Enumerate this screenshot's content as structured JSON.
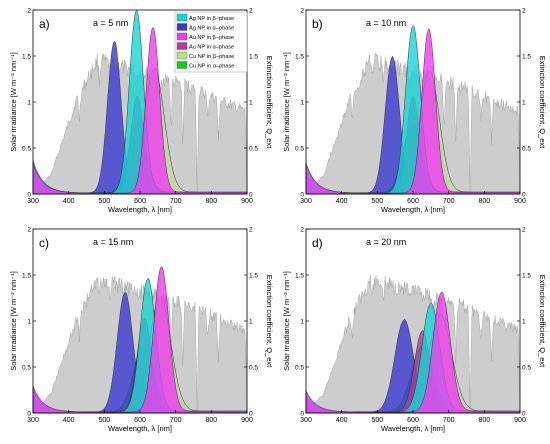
{
  "figure": {
    "legend": [
      {
        "label": "Ag NP in β–phase",
        "color": "#18d4d4"
      },
      {
        "label": "Ag NP in α–phase",
        "color": "#3a3ad0"
      },
      {
        "label": "Au NP in β–phase",
        "color": "#f03cf0"
      },
      {
        "label": "Au NP in α–phase",
        "color": "#b03aa0"
      },
      {
        "label": "Cu NP in β–phase",
        "color": "#b8e090"
      },
      {
        "label": "Cu NP in α–phase",
        "color": "#18c818"
      }
    ],
    "colors": {
      "solar": "#c8c8c8",
      "solar_edge": "#9a9a9a"
    }
  },
  "chart_data": [
    {
      "type": "area",
      "panel_label": "a)",
      "size_label": "a = 5 nm",
      "xlabel": "Wavelength, λ [nm]",
      "ylabel_left": "Solar irradiance [W m⁻² nm⁻¹]",
      "ylabel_right": "Extinction coefficient, Q_ext",
      "xlim": [
        300,
        900
      ],
      "ylim_left": [
        0,
        2.0
      ],
      "ylim_right": [
        0,
        2.0
      ],
      "xticks": [
        300,
        400,
        500,
        600,
        700,
        800,
        900
      ],
      "yticks_left": [
        0.0,
        0.5,
        1.0,
        1.5,
        2.0
      ],
      "yticks_right": [
        0.0,
        0.5,
        1.0,
        1.5,
        2.0
      ],
      "show_legend": true,
      "series": [
        {
          "name": "Ag NP in β–phase",
          "peak_x": 590,
          "peak_y": 1.98,
          "width": 20
        },
        {
          "name": "Ag NP in α–phase",
          "peak_x": 528,
          "peak_y": 1.65,
          "width": 19
        },
        {
          "name": "Au NP in β–phase",
          "peak_x": 636,
          "peak_y": 1.8,
          "width": 19
        },
        {
          "name": "Au NP in α–phase",
          "peak_x": 592,
          "peak_y": 1.05,
          "width": 18
        },
        {
          "name": "Cu NP in β–phase",
          "peak_x": 640,
          "peak_y": 1.35,
          "width": 28
        },
        {
          "name": "Cu NP in α–phase",
          "peak_x": 592,
          "peak_y": 0.75,
          "width": 25
        }
      ]
    },
    {
      "type": "area",
      "panel_label": "b)",
      "size_label": "a = 10 nm",
      "xlabel": "Wavelength, λ [nm]",
      "ylabel_left": "Solar irradiance [W m⁻² nm⁻¹]",
      "ylabel_right": "Extinction coefficient, Q_ext",
      "xlim": [
        300,
        900
      ],
      "ylim_left": [
        0,
        2.0
      ],
      "ylim_right": [
        0,
        2.0
      ],
      "xticks": [
        300,
        400,
        500,
        600,
        700,
        800,
        900
      ],
      "yticks_left": [
        0.0,
        0.5,
        1.0,
        1.5,
        2.0
      ],
      "yticks_right": [
        0.0,
        0.5,
        1.0,
        1.5,
        2.0
      ],
      "show_legend": false,
      "series": [
        {
          "name": "Ag NP in β–phase",
          "peak_x": 600,
          "peak_y": 1.82,
          "width": 21
        },
        {
          "name": "Ag NP in α–phase",
          "peak_x": 542,
          "peak_y": 1.48,
          "width": 20
        },
        {
          "name": "Au NP in β–phase",
          "peak_x": 644,
          "peak_y": 1.78,
          "width": 19
        },
        {
          "name": "Au NP in α–phase",
          "peak_x": 600,
          "peak_y": 1.05,
          "width": 18
        },
        {
          "name": "Cu NP in β–phase",
          "peak_x": 646,
          "peak_y": 1.32,
          "width": 28
        },
        {
          "name": "Cu NP in α–phase",
          "peak_x": 598,
          "peak_y": 0.75,
          "width": 26
        }
      ]
    },
    {
      "type": "area",
      "panel_label": "c)",
      "size_label": "a = 15 nm",
      "xlabel": "Wavelength, λ [nm]",
      "ylabel_left": "Solar irradiance [W m⁻² nm⁻¹]",
      "ylabel_right": "Extinction coefficient, Q_ext",
      "xlim": [
        300,
        900
      ],
      "ylim_left": [
        0,
        2.0
      ],
      "ylim_right": [
        0,
        2.0
      ],
      "xticks": [
        300,
        400,
        500,
        600,
        700,
        800,
        900
      ],
      "yticks_left": [
        0.0,
        0.5,
        1.0,
        1.5,
        2.0
      ],
      "yticks_right": [
        0.0,
        0.5,
        1.0,
        1.5,
        2.0
      ],
      "show_legend": false,
      "series": [
        {
          "name": "Ag NP in β–phase",
          "peak_x": 622,
          "peak_y": 1.45,
          "width": 22
        },
        {
          "name": "Ag NP in α–phase",
          "peak_x": 558,
          "peak_y": 1.3,
          "width": 22
        },
        {
          "name": "Au NP in β–phase",
          "peak_x": 660,
          "peak_y": 1.58,
          "width": 21
        },
        {
          "name": "Au NP in α–phase",
          "peak_x": 612,
          "peak_y": 1.02,
          "width": 20
        },
        {
          "name": "Cu NP in β–phase",
          "peak_x": 656,
          "peak_y": 1.25,
          "width": 30
        },
        {
          "name": "Cu NP in α–phase",
          "peak_x": 610,
          "peak_y": 0.72,
          "width": 28
        }
      ]
    },
    {
      "type": "area",
      "panel_label": "d)",
      "size_label": "a = 20 nm",
      "xlabel": "Wavelength, λ [nm]",
      "ylabel_left": "Solar irradiance [W m⁻² nm⁻¹]",
      "ylabel_right": "Extinction coefficient, Q_ext",
      "xlim": [
        300,
        900
      ],
      "ylim_left": [
        0,
        2.0
      ],
      "ylim_right": [
        0,
        2.0
      ],
      "xticks": [
        300,
        400,
        500,
        600,
        700,
        800,
        900
      ],
      "yticks_left": [
        0.0,
        0.5,
        1.0,
        1.5,
        2.0
      ],
      "yticks_right": [
        0.0,
        0.5,
        1.0,
        1.5,
        2.0
      ],
      "show_legend": false,
      "series": [
        {
          "name": "Ag NP in β–phase",
          "peak_x": 650,
          "peak_y": 1.18,
          "width": 25
        },
        {
          "name": "Ag NP in α–phase",
          "peak_x": 575,
          "peak_y": 1.0,
          "width": 26
        },
        {
          "name": "Au NP in β–phase",
          "peak_x": 680,
          "peak_y": 1.3,
          "width": 24
        },
        {
          "name": "Au NP in α–phase",
          "peak_x": 626,
          "peak_y": 0.88,
          "width": 22
        },
        {
          "name": "Cu NP in β–phase",
          "peak_x": 676,
          "peak_y": 1.05,
          "width": 32
        },
        {
          "name": "Cu NP in α–phase",
          "peak_x": 626,
          "peak_y": 0.72,
          "width": 30
        }
      ]
    }
  ]
}
